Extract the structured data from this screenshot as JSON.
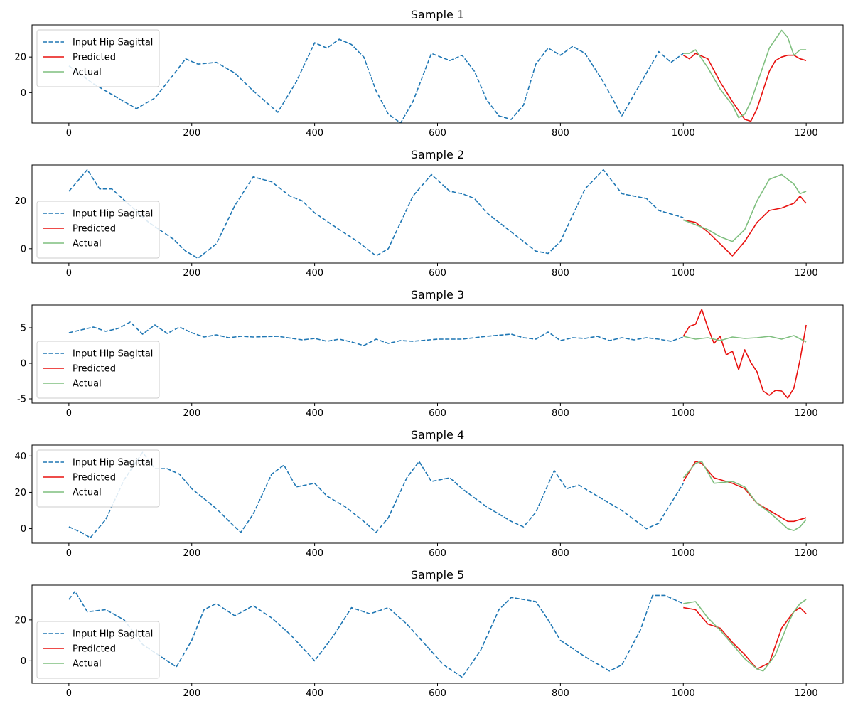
{
  "colors": {
    "input": "#1f77b4",
    "predicted": "#e8110f",
    "actual": "#7fbf7f",
    "legend_border": "#cccccc"
  },
  "legend": {
    "input": "Input Hip Sagittal",
    "predicted": "Predicted",
    "actual": "Actual"
  },
  "chart_data": [
    {
      "type": "line",
      "title": "Sample 1",
      "xlim": [
        -60,
        1260
      ],
      "ylim": [
        -17,
        38
      ],
      "xticks": [
        0,
        200,
        400,
        600,
        800,
        1000,
        1200
      ],
      "yticks": [
        0,
        20
      ],
      "legend_position": "upper left",
      "series": [
        {
          "name": "Input Hip Sagittal",
          "style": "dashed",
          "x": [
            0,
            40,
            80,
            110,
            140,
            170,
            190,
            210,
            240,
            270,
            300,
            340,
            370,
            400,
            420,
            440,
            460,
            480,
            500,
            520,
            540,
            560,
            590,
            620,
            640,
            660,
            680,
            700,
            720,
            740,
            760,
            780,
            800,
            820,
            840,
            870,
            900,
            930,
            960,
            980,
            1000
          ],
          "y": [
            15,
            5,
            -3,
            -9,
            -3,
            10,
            19,
            16,
            17,
            11,
            1,
            -11,
            6,
            28,
            25,
            30,
            27,
            20,
            1,
            -12,
            -17,
            -5,
            22,
            18,
            21,
            12,
            -4,
            -13,
            -15,
            -7,
            16,
            25,
            21,
            26,
            22,
            6,
            -13,
            5,
            23,
            17,
            22
          ]
        },
        {
          "name": "Predicted",
          "style": "solid",
          "x": [
            1000,
            1010,
            1020,
            1040,
            1060,
            1080,
            1100,
            1110,
            1120,
            1140,
            1150,
            1160,
            1170,
            1180,
            1190,
            1200
          ],
          "y": [
            21,
            19,
            22,
            19,
            6,
            -5,
            -15,
            -16,
            -9,
            12,
            18,
            20,
            21,
            21,
            19,
            18
          ]
        },
        {
          "name": "Actual",
          "style": "solid",
          "x": [
            1000,
            1010,
            1020,
            1040,
            1060,
            1080,
            1090,
            1100,
            1110,
            1120,
            1140,
            1150,
            1160,
            1170,
            1180,
            1190,
            1200
          ],
          "y": [
            22,
            22,
            24,
            14,
            2,
            -7,
            -14,
            -12,
            -5,
            5,
            25,
            30,
            35,
            31,
            21,
            24,
            24
          ]
        }
      ]
    },
    {
      "type": "line",
      "title": "Sample 2",
      "xlim": [
        -60,
        1260
      ],
      "ylim": [
        -6,
        35
      ],
      "xticks": [
        0,
        200,
        400,
        600,
        800,
        1000,
        1200
      ],
      "yticks": [
        0,
        20
      ],
      "legend_position": "lower left",
      "series": [
        {
          "name": "Input Hip Sagittal",
          "style": "dashed",
          "x": [
            0,
            30,
            50,
            70,
            100,
            130,
            170,
            190,
            210,
            240,
            270,
            300,
            330,
            360,
            380,
            400,
            440,
            470,
            500,
            520,
            560,
            590,
            620,
            640,
            660,
            680,
            720,
            760,
            780,
            800,
            840,
            870,
            900,
            920,
            940,
            960,
            1000
          ],
          "y": [
            24,
            33,
            25,
            25,
            18,
            11,
            4,
            -1,
            -4,
            2,
            18,
            30,
            28,
            22,
            20,
            15,
            8,
            3,
            -3,
            0,
            22,
            31,
            24,
            23,
            21,
            15,
            7,
            -1,
            -2,
            3,
            25,
            33,
            23,
            22,
            21,
            16,
            13
          ]
        },
        {
          "name": "Predicted",
          "style": "solid",
          "x": [
            1000,
            1020,
            1040,
            1060,
            1080,
            1100,
            1120,
            1140,
            1160,
            1180,
            1190,
            1200
          ],
          "y": [
            12,
            11,
            7,
            2,
            -3,
            3,
            11,
            16,
            17,
            19,
            22,
            19
          ]
        },
        {
          "name": "Actual",
          "style": "solid",
          "x": [
            1000,
            1020,
            1040,
            1060,
            1080,
            1100,
            1120,
            1140,
            1160,
            1180,
            1190,
            1200
          ],
          "y": [
            12,
            10,
            8,
            5,
            3,
            8,
            20,
            29,
            31,
            27,
            23,
            24
          ]
        }
      ]
    },
    {
      "type": "line",
      "title": "Sample 3",
      "xlim": [
        -60,
        1260
      ],
      "ylim": [
        -5.6,
        8.2
      ],
      "xticks": [
        0,
        200,
        400,
        600,
        800,
        1000,
        1200
      ],
      "yticks": [
        -5,
        0,
        5
      ],
      "legend_position": "lower left",
      "series": [
        {
          "name": "Input Hip Sagittal",
          "style": "dashed",
          "x": [
            0,
            20,
            40,
            60,
            80,
            100,
            120,
            140,
            160,
            180,
            200,
            220,
            240,
            260,
            280,
            300,
            340,
            380,
            400,
            420,
            440,
            460,
            480,
            500,
            520,
            540,
            560,
            600,
            640,
            680,
            720,
            740,
            760,
            780,
            800,
            820,
            840,
            860,
            880,
            900,
            920,
            940,
            960,
            980,
            1000
          ],
          "y": [
            4.3,
            4.7,
            5.1,
            4.5,
            4.9,
            5.8,
            4.1,
            5.4,
            4.2,
            5.1,
            4.3,
            3.7,
            4.0,
            3.6,
            3.8,
            3.7,
            3.8,
            3.3,
            3.5,
            3.1,
            3.4,
            3.0,
            2.5,
            3.4,
            2.8,
            3.2,
            3.1,
            3.4,
            3.4,
            3.8,
            4.1,
            3.6,
            3.4,
            4.4,
            3.2,
            3.6,
            3.5,
            3.8,
            3.2,
            3.6,
            3.3,
            3.6,
            3.4,
            3.1,
            3.7
          ]
        },
        {
          "name": "Predicted",
          "style": "solid",
          "x": [
            1000,
            1010,
            1020,
            1030,
            1040,
            1050,
            1060,
            1070,
            1080,
            1090,
            1100,
            1110,
            1120,
            1130,
            1140,
            1150,
            1160,
            1170,
            1180,
            1190,
            1200
          ],
          "y": [
            3.8,
            5.2,
            5.5,
            7.6,
            5.0,
            2.8,
            3.8,
            1.2,
            1.7,
            -0.9,
            1.9,
            0.1,
            -1.2,
            -3.9,
            -4.5,
            -3.8,
            -3.9,
            -4.9,
            -3.5,
            0.5,
            5.4
          ]
        },
        {
          "name": "Actual",
          "style": "solid",
          "x": [
            1000,
            1020,
            1040,
            1060,
            1080,
            1100,
            1120,
            1140,
            1160,
            1180,
            1200
          ],
          "y": [
            3.8,
            3.4,
            3.6,
            3.2,
            3.7,
            3.5,
            3.6,
            3.8,
            3.4,
            3.9,
            3.0
          ]
        }
      ]
    },
    {
      "type": "line",
      "title": "Sample 4",
      "xlim": [
        -60,
        1260
      ],
      "ylim": [
        -8,
        46
      ],
      "xticks": [
        0,
        200,
        400,
        600,
        800,
        1000,
        1200
      ],
      "yticks": [
        0,
        20,
        40
      ],
      "legend_position": "upper left",
      "series": [
        {
          "name": "Input Hip Sagittal",
          "style": "dashed",
          "x": [
            0,
            20,
            35,
            60,
            90,
            120,
            140,
            160,
            180,
            200,
            240,
            270,
            280,
            300,
            330,
            350,
            370,
            400,
            420,
            450,
            480,
            500,
            520,
            550,
            570,
            590,
            620,
            640,
            680,
            720,
            740,
            760,
            790,
            810,
            830,
            860,
            900,
            940,
            960,
            1000
          ],
          "y": [
            1,
            -2,
            -5,
            5,
            27,
            42,
            33,
            33,
            30,
            22,
            11,
            1,
            -2,
            8,
            30,
            35,
            23,
            25,
            18,
            12,
            4,
            -2,
            6,
            28,
            37,
            26,
            28,
            22,
            12,
            4,
            1,
            9,
            32,
            22,
            24,
            18,
            10,
            0,
            3,
            25
          ]
        },
        {
          "name": "Predicted",
          "style": "solid",
          "x": [
            1000,
            1020,
            1030,
            1050,
            1080,
            1100,
            1120,
            1140,
            1160,
            1170,
            1180,
            1200
          ],
          "y": [
            26,
            37,
            36,
            28,
            25,
            22,
            14,
            10,
            6,
            4,
            4,
            6
          ]
        },
        {
          "name": "Actual",
          "style": "solid",
          "x": [
            1000,
            1020,
            1030,
            1050,
            1080,
            1100,
            1120,
            1140,
            1160,
            1170,
            1180,
            1190,
            1200
          ],
          "y": [
            28,
            36,
            37,
            25,
            26,
            23,
            14,
            9,
            3,
            0,
            -1,
            1,
            5
          ]
        }
      ]
    },
    {
      "type": "line",
      "title": "Sample 5",
      "xlim": [
        -60,
        1260
      ],
      "ylim": [
        -11,
        37
      ],
      "xticks": [
        0,
        200,
        400,
        600,
        800,
        1000,
        1200
      ],
      "yticks": [
        0,
        20
      ],
      "legend_position": "lower left",
      "series": [
        {
          "name": "Input Hip Sagittal",
          "style": "dashed",
          "x": [
            0,
            10,
            30,
            60,
            90,
            120,
            150,
            175,
            200,
            220,
            240,
            270,
            300,
            330,
            360,
            400,
            430,
            460,
            490,
            520,
            550,
            580,
            610,
            640,
            670,
            700,
            720,
            760,
            780,
            800,
            840,
            880,
            900,
            930,
            950,
            970,
            1000
          ],
          "y": [
            30,
            34,
            24,
            25,
            20,
            8,
            2,
            -3,
            10,
            25,
            28,
            22,
            27,
            21,
            13,
            0,
            12,
            26,
            23,
            26,
            18,
            8,
            -2,
            -8,
            5,
            25,
            31,
            29,
            20,
            10,
            2,
            -5,
            -2,
            15,
            32,
            32,
            28
          ]
        },
        {
          "name": "Predicted",
          "style": "solid",
          "x": [
            1000,
            1020,
            1040,
            1060,
            1080,
            1100,
            1120,
            1140,
            1160,
            1180,
            1190,
            1200
          ],
          "y": [
            26,
            25,
            18,
            16,
            9,
            3,
            -4,
            -1,
            16,
            24,
            26,
            23
          ]
        },
        {
          "name": "Actual",
          "style": "solid",
          "x": [
            1000,
            1020,
            1040,
            1060,
            1080,
            1100,
            1120,
            1130,
            1150,
            1170,
            1180,
            1190,
            1200
          ],
          "y": [
            28,
            29,
            21,
            15,
            8,
            1,
            -4,
            -5,
            3,
            18,
            24,
            28,
            30
          ]
        }
      ]
    }
  ]
}
